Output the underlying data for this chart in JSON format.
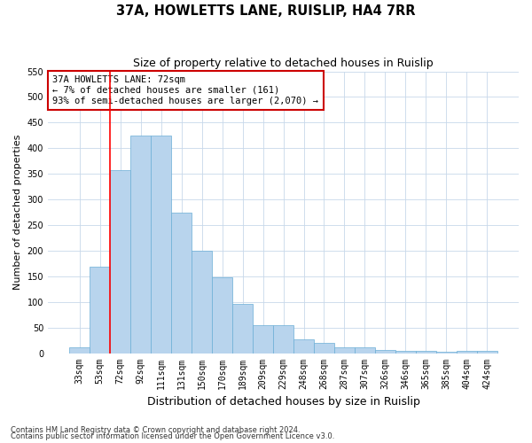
{
  "title": "37A, HOWLETTS LANE, RUISLIP, HA4 7RR",
  "subtitle": "Size of property relative to detached houses in Ruislip",
  "xlabel": "Distribution of detached houses by size in Ruislip",
  "ylabel": "Number of detached properties",
  "categories": [
    "33sqm",
    "53sqm",
    "72sqm",
    "92sqm",
    "111sqm",
    "131sqm",
    "150sqm",
    "170sqm",
    "189sqm",
    "209sqm",
    "229sqm",
    "248sqm",
    "268sqm",
    "287sqm",
    "307sqm",
    "326sqm",
    "346sqm",
    "365sqm",
    "385sqm",
    "404sqm",
    "424sqm"
  ],
  "values": [
    12,
    168,
    357,
    425,
    425,
    275,
    200,
    148,
    96,
    55,
    55,
    27,
    20,
    12,
    12,
    7,
    5,
    4,
    2,
    4,
    4
  ],
  "bar_color": "#b8d4ed",
  "bar_edge_color": "#6aaed6",
  "red_line_index": 2,
  "annotation_text": "37A HOWLETTS LANE: 72sqm\n← 7% of detached houses are smaller (161)\n93% of semi-detached houses are larger (2,070) →",
  "annotation_box_color": "#ffffff",
  "annotation_box_edge": "#cc0000",
  "ylim": [
    0,
    550
  ],
  "yticks": [
    0,
    50,
    100,
    150,
    200,
    250,
    300,
    350,
    400,
    450,
    500,
    550
  ],
  "footer1": "Contains HM Land Registry data © Crown copyright and database right 2024.",
  "footer2": "Contains public sector information licensed under the Open Government Licence v3.0.",
  "bg_color": "#ffffff",
  "grid_color": "#c8d8ea",
  "title_fontsize": 10.5,
  "subtitle_fontsize": 9,
  "xlabel_fontsize": 9,
  "ylabel_fontsize": 8,
  "tick_fontsize": 7,
  "annot_fontsize": 7.5
}
